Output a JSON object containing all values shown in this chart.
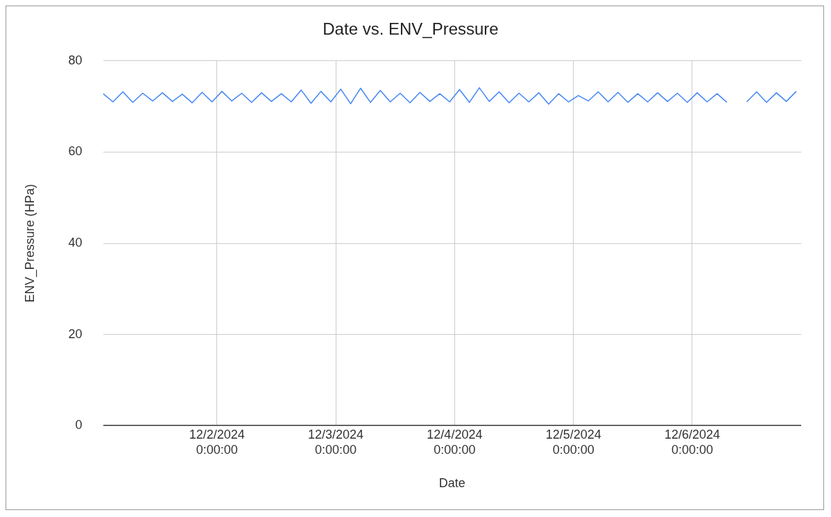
{
  "chart_data": {
    "type": "line",
    "title": "Date vs. ENV_Pressure",
    "xlabel": "Date",
    "ylabel": "ENV_Pressure (HPa)",
    "x": [
      "2024-12-01T01:00",
      "2024-12-01T03:00",
      "2024-12-01T05:00",
      "2024-12-01T07:00",
      "2024-12-01T09:00",
      "2024-12-01T11:00",
      "2024-12-01T13:00",
      "2024-12-01T15:00",
      "2024-12-01T17:00",
      "2024-12-01T19:00",
      "2024-12-01T21:00",
      "2024-12-01T23:00",
      "2024-12-02T01:00",
      "2024-12-02T03:00",
      "2024-12-02T05:00",
      "2024-12-02T07:00",
      "2024-12-02T09:00",
      "2024-12-02T11:00",
      "2024-12-02T13:00",
      "2024-12-02T15:00",
      "2024-12-02T17:00",
      "2024-12-02T19:00",
      "2024-12-02T21:00",
      "2024-12-02T23:00",
      "2024-12-03T01:00",
      "2024-12-03T03:00",
      "2024-12-03T05:00",
      "2024-12-03T07:00",
      "2024-12-03T09:00",
      "2024-12-03T11:00",
      "2024-12-03T13:00",
      "2024-12-03T15:00",
      "2024-12-03T17:00",
      "2024-12-03T19:00",
      "2024-12-03T21:00",
      "2024-12-03T23:00",
      "2024-12-04T01:00",
      "2024-12-04T03:00",
      "2024-12-04T05:00",
      "2024-12-04T07:00",
      "2024-12-04T09:00",
      "2024-12-04T11:00",
      "2024-12-04T13:00",
      "2024-12-04T15:00",
      "2024-12-04T17:00",
      "2024-12-04T19:00",
      "2024-12-04T21:00",
      "2024-12-04T23:00",
      "2024-12-05T01:00",
      "2024-12-05T03:00",
      "2024-12-05T05:00",
      "2024-12-05T07:00",
      "2024-12-05T09:00",
      "2024-12-05T11:00",
      "2024-12-05T13:00",
      "2024-12-05T15:00",
      "2024-12-05T17:00",
      "2024-12-05T19:00",
      "2024-12-05T21:00",
      "2024-12-05T23:00",
      "2024-12-06T01:00",
      "2024-12-06T03:00",
      "2024-12-06T05:00",
      "2024-12-06T07:00",
      "2024-12-06T09:00",
      "2024-12-06T11:00",
      "2024-12-06T13:00",
      "2024-12-06T15:00",
      "2024-12-06T17:00",
      "2024-12-06T19:00",
      "2024-12-06T21:00"
    ],
    "series": [
      {
        "color": "#4285f4",
        "values": [
          72.8,
          71.0,
          73.2,
          70.9,
          72.9,
          71.2,
          73.0,
          71.1,
          72.7,
          70.8,
          73.1,
          71.0,
          73.3,
          71.2,
          72.9,
          70.9,
          73.0,
          71.1,
          72.8,
          71.0,
          73.6,
          70.7,
          73.3,
          71.0,
          73.8,
          70.6,
          74.0,
          70.9,
          73.5,
          71.0,
          72.9,
          70.8,
          73.1,
          71.1,
          72.8,
          71.0,
          73.7,
          70.9,
          74.1,
          71.1,
          73.2,
          70.8,
          72.9,
          71.0,
          73.0,
          70.5,
          72.8,
          71.0,
          72.4,
          71.2,
          73.2,
          71.0,
          73.1,
          70.9,
          72.8,
          71.0,
          73.0,
          71.1,
          72.9,
          70.9,
          73.0,
          71.0,
          72.8,
          70.9,
          null,
          71.0,
          73.2,
          70.9,
          73.0,
          71.1,
          73.3
        ]
      }
    ],
    "xlim": [
      "2024-12-01T01:00",
      "2024-12-06T22:00"
    ],
    "xticks": [
      {
        "value": "2024-12-02T00:00",
        "label": "12/2/2024\n0:00:00"
      },
      {
        "value": "2024-12-03T00:00",
        "label": "12/3/2024\n0:00:00"
      },
      {
        "value": "2024-12-04T00:00",
        "label": "12/4/2024\n0:00:00"
      },
      {
        "value": "2024-12-05T00:00",
        "label": "12/5/2024\n0:00:00"
      },
      {
        "value": "2024-12-06T00:00",
        "label": "12/6/2024\n0:00:00"
      }
    ],
    "ylim": [
      0,
      80
    ],
    "yticks": [
      0,
      20,
      40,
      60,
      80
    ],
    "grid": true,
    "legend": false,
    "marker": "none",
    "line_style": "solid"
  }
}
